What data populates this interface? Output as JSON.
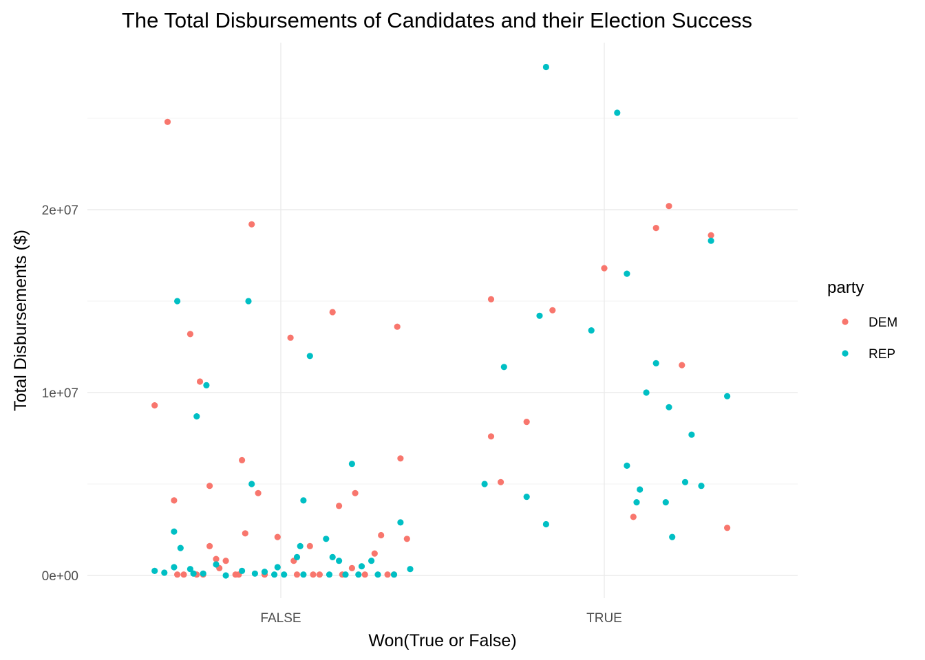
{
  "chart_data": {
    "type": "scatter",
    "title": "The Total Disbursements of Candidates and their Election Success",
    "xlabel": "Won(True or False)",
    "ylabel": "Total Disbursements ($)",
    "categories": [
      "FALSE",
      "TRUE"
    ],
    "ylim": [
      -1200000,
      28800000
    ],
    "y_ticks": [
      0,
      10000000,
      20000000
    ],
    "y_tick_labels": [
      "0e+00",
      "1e+07",
      "2e+07"
    ],
    "grid": true,
    "legend": {
      "title": "party",
      "position": "right",
      "items": [
        {
          "name": "DEM",
          "color": "#F8766D"
        },
        {
          "name": "REP",
          "color": "#00BFC4"
        }
      ]
    },
    "series": [
      {
        "name": "DEM",
        "color": "#F8766D",
        "points": [
          {
            "x": "FALSE",
            "jitter": -0.35,
            "y": 24800000
          },
          {
            "x": "FALSE",
            "jitter": -0.09,
            "y": 19200000
          },
          {
            "x": "FALSE",
            "jitter": -0.28,
            "y": 13200000
          },
          {
            "x": "FALSE",
            "jitter": -0.25,
            "y": 10600000
          },
          {
            "x": "FALSE",
            "jitter": -0.39,
            "y": 9300000
          },
          {
            "x": "FALSE",
            "jitter": 0.16,
            "y": 14400000
          },
          {
            "x": "FALSE",
            "jitter": 0.36,
            "y": 13600000
          },
          {
            "x": "FALSE",
            "jitter": 0.03,
            "y": 13000000
          },
          {
            "x": "FALSE",
            "jitter": -0.12,
            "y": 6300000
          },
          {
            "x": "FALSE",
            "jitter": 0.37,
            "y": 6400000
          },
          {
            "x": "FALSE",
            "jitter": -0.22,
            "y": 4900000
          },
          {
            "x": "FALSE",
            "jitter": -0.07,
            "y": 4500000
          },
          {
            "x": "FALSE",
            "jitter": 0.23,
            "y": 4500000
          },
          {
            "x": "FALSE",
            "jitter": -0.33,
            "y": 4100000
          },
          {
            "x": "FALSE",
            "jitter": 0.18,
            "y": 3800000
          },
          {
            "x": "FALSE",
            "jitter": -0.11,
            "y": 2300000
          },
          {
            "x": "FALSE",
            "jitter": 0.31,
            "y": 2200000
          },
          {
            "x": "FALSE",
            "jitter": -0.01,
            "y": 2100000
          },
          {
            "x": "FALSE",
            "jitter": 0.39,
            "y": 2000000
          },
          {
            "x": "FALSE",
            "jitter": -0.22,
            "y": 1600000
          },
          {
            "x": "FALSE",
            "jitter": 0.09,
            "y": 1600000
          },
          {
            "x": "FALSE",
            "jitter": 0.29,
            "y": 1200000
          },
          {
            "x": "FALSE",
            "jitter": -0.2,
            "y": 900000
          },
          {
            "x": "FALSE",
            "jitter": -0.17,
            "y": 800000
          },
          {
            "x": "FALSE",
            "jitter": 0.04,
            "y": 800000
          },
          {
            "x": "FALSE",
            "jitter": -0.19,
            "y": 400000
          },
          {
            "x": "FALSE",
            "jitter": 0.22,
            "y": 400000
          },
          {
            "x": "FALSE",
            "jitter": -0.32,
            "y": 50000
          },
          {
            "x": "FALSE",
            "jitter": -0.3,
            "y": 50000
          },
          {
            "x": "FALSE",
            "jitter": -0.26,
            "y": 50000
          },
          {
            "x": "FALSE",
            "jitter": -0.24,
            "y": 50000
          },
          {
            "x": "FALSE",
            "jitter": -0.14,
            "y": 50000
          },
          {
            "x": "FALSE",
            "jitter": -0.13,
            "y": 50000
          },
          {
            "x": "FALSE",
            "jitter": -0.05,
            "y": 50000
          },
          {
            "x": "FALSE",
            "jitter": 0.05,
            "y": 50000
          },
          {
            "x": "FALSE",
            "jitter": 0.1,
            "y": 50000
          },
          {
            "x": "FALSE",
            "jitter": 0.12,
            "y": 50000
          },
          {
            "x": "FALSE",
            "jitter": 0.19,
            "y": 50000
          },
          {
            "x": "FALSE",
            "jitter": 0.26,
            "y": 50000
          },
          {
            "x": "FALSE",
            "jitter": 0.33,
            "y": 50000
          },
          {
            "x": "FALSE",
            "jitter": 0.35,
            "y": 50000
          },
          {
            "x": "TRUE",
            "jitter": -0.35,
            "y": 15100000
          },
          {
            "x": "TRUE",
            "jitter": -0.16,
            "y": 14500000
          },
          {
            "x": "TRUE",
            "jitter": 0.0,
            "y": 16800000
          },
          {
            "x": "TRUE",
            "jitter": 0.16,
            "y": 19000000
          },
          {
            "x": "TRUE",
            "jitter": 0.2,
            "y": 20200000
          },
          {
            "x": "TRUE",
            "jitter": 0.33,
            "y": 18600000
          },
          {
            "x": "TRUE",
            "jitter": 0.24,
            "y": 11500000
          },
          {
            "x": "TRUE",
            "jitter": -0.24,
            "y": 8400000
          },
          {
            "x": "TRUE",
            "jitter": -0.35,
            "y": 7600000
          },
          {
            "x": "TRUE",
            "jitter": -0.32,
            "y": 5100000
          },
          {
            "x": "TRUE",
            "jitter": 0.09,
            "y": 3200000
          },
          {
            "x": "TRUE",
            "jitter": 0.38,
            "y": 2600000
          }
        ]
      },
      {
        "name": "REP",
        "color": "#00BFC4",
        "points": [
          {
            "x": "FALSE",
            "jitter": -0.32,
            "y": 15000000
          },
          {
            "x": "FALSE",
            "jitter": -0.1,
            "y": 15000000
          },
          {
            "x": "FALSE",
            "jitter": 0.09,
            "y": 12000000
          },
          {
            "x": "FALSE",
            "jitter": -0.23,
            "y": 10400000
          },
          {
            "x": "FALSE",
            "jitter": -0.26,
            "y": 8700000
          },
          {
            "x": "FALSE",
            "jitter": 0.22,
            "y": 6100000
          },
          {
            "x": "FALSE",
            "jitter": -0.09,
            "y": 5000000
          },
          {
            "x": "FALSE",
            "jitter": 0.07,
            "y": 4100000
          },
          {
            "x": "FALSE",
            "jitter": 0.37,
            "y": 2900000
          },
          {
            "x": "FALSE",
            "jitter": -0.33,
            "y": 2400000
          },
          {
            "x": "FALSE",
            "jitter": 0.14,
            "y": 2000000
          },
          {
            "x": "FALSE",
            "jitter": -0.31,
            "y": 1500000
          },
          {
            "x": "FALSE",
            "jitter": 0.06,
            "y": 1600000
          },
          {
            "x": "FALSE",
            "jitter": 0.05,
            "y": 1000000
          },
          {
            "x": "FALSE",
            "jitter": 0.16,
            "y": 1000000
          },
          {
            "x": "FALSE",
            "jitter": 0.18,
            "y": 800000
          },
          {
            "x": "FALSE",
            "jitter": 0.28,
            "y": 800000
          },
          {
            "x": "FALSE",
            "jitter": -0.2,
            "y": 600000
          },
          {
            "x": "FALSE",
            "jitter": 0.25,
            "y": 500000
          },
          {
            "x": "FALSE",
            "jitter": -0.33,
            "y": 450000
          },
          {
            "x": "FALSE",
            "jitter": -0.01,
            "y": 450000
          },
          {
            "x": "FALSE",
            "jitter": 0.4,
            "y": 350000
          },
          {
            "x": "FALSE",
            "jitter": -0.28,
            "y": 350000
          },
          {
            "x": "FALSE",
            "jitter": -0.39,
            "y": 250000
          },
          {
            "x": "FALSE",
            "jitter": -0.12,
            "y": 250000
          },
          {
            "x": "FALSE",
            "jitter": -0.05,
            "y": 200000
          },
          {
            "x": "FALSE",
            "jitter": -0.36,
            "y": 150000
          },
          {
            "x": "FALSE",
            "jitter": -0.27,
            "y": 100000
          },
          {
            "x": "FALSE",
            "jitter": -0.24,
            "y": 100000
          },
          {
            "x": "FALSE",
            "jitter": -0.08,
            "y": 100000
          },
          {
            "x": "FALSE",
            "jitter": -0.02,
            "y": 50000
          },
          {
            "x": "FALSE",
            "jitter": 0.01,
            "y": 50000
          },
          {
            "x": "FALSE",
            "jitter": 0.07,
            "y": 50000
          },
          {
            "x": "FALSE",
            "jitter": 0.15,
            "y": 50000
          },
          {
            "x": "FALSE",
            "jitter": 0.2,
            "y": 50000
          },
          {
            "x": "FALSE",
            "jitter": 0.24,
            "y": 50000
          },
          {
            "x": "FALSE",
            "jitter": 0.3,
            "y": 50000
          },
          {
            "x": "FALSE",
            "jitter": 0.35,
            "y": 50000
          },
          {
            "x": "FALSE",
            "jitter": -0.17,
            "y": 0
          },
          {
            "x": "TRUE",
            "jitter": -0.18,
            "y": 27800000
          },
          {
            "x": "TRUE",
            "jitter": 0.04,
            "y": 25300000
          },
          {
            "x": "TRUE",
            "jitter": 0.33,
            "y": 18300000
          },
          {
            "x": "TRUE",
            "jitter": 0.07,
            "y": 16500000
          },
          {
            "x": "TRUE",
            "jitter": -0.2,
            "y": 14200000
          },
          {
            "x": "TRUE",
            "jitter": -0.04,
            "y": 13400000
          },
          {
            "x": "TRUE",
            "jitter": 0.16,
            "y": 11600000
          },
          {
            "x": "TRUE",
            "jitter": -0.31,
            "y": 11400000
          },
          {
            "x": "TRUE",
            "jitter": 0.13,
            "y": 10000000
          },
          {
            "x": "TRUE",
            "jitter": 0.38,
            "y": 9800000
          },
          {
            "x": "TRUE",
            "jitter": 0.2,
            "y": 9200000
          },
          {
            "x": "TRUE",
            "jitter": 0.27,
            "y": 7700000
          },
          {
            "x": "TRUE",
            "jitter": 0.07,
            "y": 6000000
          },
          {
            "x": "TRUE",
            "jitter": 0.25,
            "y": 5100000
          },
          {
            "x": "TRUE",
            "jitter": 0.3,
            "y": 4900000
          },
          {
            "x": "TRUE",
            "jitter": -0.37,
            "y": 5000000
          },
          {
            "x": "TRUE",
            "jitter": 0.11,
            "y": 4700000
          },
          {
            "x": "TRUE",
            "jitter": -0.24,
            "y": 4300000
          },
          {
            "x": "TRUE",
            "jitter": 0.1,
            "y": 4000000
          },
          {
            "x": "TRUE",
            "jitter": 0.19,
            "y": 4000000
          },
          {
            "x": "TRUE",
            "jitter": -0.18,
            "y": 2800000
          },
          {
            "x": "TRUE",
            "jitter": 0.21,
            "y": 2100000
          }
        ]
      }
    ]
  }
}
